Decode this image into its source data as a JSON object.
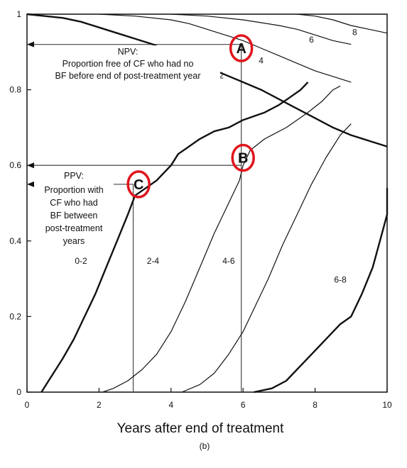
{
  "chart_data": {
    "type": "line",
    "title": "",
    "xlabel": "Years after end of treatment",
    "ylabel": "",
    "subcaption": "(b)",
    "xlim": [
      0,
      10
    ],
    "ylim": [
      0,
      1
    ],
    "x_ticks": [
      "0",
      "2",
      "4",
      "6",
      "8",
      "10"
    ],
    "y_ticks": [
      "0",
      "0.2",
      "0.4",
      "0.6",
      "0.8",
      "1"
    ],
    "grid": false,
    "series": [
      {
        "name": "2",
        "role": "npv",
        "points": [
          [
            0,
            1
          ],
          [
            0.5,
            0.995
          ],
          [
            1,
            0.99
          ],
          [
            1.5,
            0.98
          ],
          [
            2,
            0.965
          ],
          [
            2.5,
            0.95
          ],
          [
            3,
            0.935
          ],
          [
            3.5,
            0.92
          ],
          [
            4,
            0.9
          ],
          [
            4.5,
            0.88
          ],
          [
            5,
            0.86
          ],
          [
            5.5,
            0.84
          ],
          [
            6,
            0.82
          ],
          [
            6.5,
            0.8
          ],
          [
            7,
            0.775
          ],
          [
            7.5,
            0.75
          ],
          [
            8,
            0.725
          ],
          [
            8.5,
            0.7
          ],
          [
            9,
            0.68
          ],
          [
            9.5,
            0.665
          ],
          [
            10,
            0.65
          ]
        ]
      },
      {
        "name": "4",
        "role": "npv",
        "points": [
          [
            2,
            1
          ],
          [
            3,
            0.995
          ],
          [
            4,
            0.985
          ],
          [
            4.5,
            0.975
          ],
          [
            5,
            0.96
          ],
          [
            5.5,
            0.945
          ],
          [
            6,
            0.93
          ],
          [
            6.5,
            0.91
          ],
          [
            7,
            0.89
          ],
          [
            7.5,
            0.87
          ],
          [
            8,
            0.85
          ],
          [
            8.5,
            0.835
          ],
          [
            9,
            0.82
          ]
        ]
      },
      {
        "name": "6",
        "role": "npv",
        "points": [
          [
            4,
            1
          ],
          [
            5,
            0.995
          ],
          [
            6,
            0.985
          ],
          [
            7,
            0.97
          ],
          [
            7.5,
            0.96
          ],
          [
            8,
            0.945
          ],
          [
            8.5,
            0.93
          ],
          [
            9,
            0.92
          ]
        ]
      },
      {
        "name": "8",
        "role": "npv",
        "points": [
          [
            7.5,
            1
          ],
          [
            8,
            0.995
          ],
          [
            8.5,
            0.985
          ],
          [
            9,
            0.97
          ],
          [
            9.5,
            0.96
          ],
          [
            10,
            0.95
          ]
        ]
      },
      {
        "name": "0-2",
        "role": "ppv",
        "points": [
          [
            0.4,
            0
          ],
          [
            0.6,
            0.03
          ],
          [
            0.8,
            0.06
          ],
          [
            1,
            0.09
          ],
          [
            1.3,
            0.14
          ],
          [
            1.6,
            0.2
          ],
          [
            1.9,
            0.26
          ],
          [
            2.2,
            0.33
          ],
          [
            2.5,
            0.4
          ],
          [
            2.8,
            0.47
          ],
          [
            3,
            0.52
          ],
          [
            3.3,
            0.54
          ],
          [
            3.6,
            0.56
          ],
          [
            4,
            0.6
          ],
          [
            4.2,
            0.63
          ],
          [
            4.8,
            0.67
          ],
          [
            5.2,
            0.69
          ],
          [
            5.6,
            0.7
          ],
          [
            6,
            0.72
          ],
          [
            6.6,
            0.74
          ],
          [
            7,
            0.76
          ],
          [
            7.3,
            0.78
          ],
          [
            7.6,
            0.8
          ],
          [
            7.8,
            0.82
          ]
        ]
      },
      {
        "name": "2-4",
        "role": "ppv",
        "points": [
          [
            2.1,
            0
          ],
          [
            2.4,
            0.01
          ],
          [
            2.8,
            0.03
          ],
          [
            3.2,
            0.06
          ],
          [
            3.6,
            0.1
          ],
          [
            4,
            0.16
          ],
          [
            4.4,
            0.24
          ],
          [
            4.8,
            0.33
          ],
          [
            5.2,
            0.42
          ],
          [
            5.6,
            0.5
          ],
          [
            5.9,
            0.56
          ],
          [
            6,
            0.6
          ],
          [
            6.2,
            0.64
          ],
          [
            6.6,
            0.67
          ],
          [
            7.2,
            0.7
          ],
          [
            7.8,
            0.74
          ],
          [
            8.2,
            0.77
          ],
          [
            8.5,
            0.8
          ],
          [
            8.7,
            0.81
          ]
        ]
      },
      {
        "name": "4-6",
        "role": "ppv",
        "points": [
          [
            4.3,
            0
          ],
          [
            4.8,
            0.02
          ],
          [
            5.2,
            0.05
          ],
          [
            5.6,
            0.1
          ],
          [
            6,
            0.16
          ],
          [
            6.3,
            0.22
          ],
          [
            6.7,
            0.3
          ],
          [
            7.1,
            0.39
          ],
          [
            7.5,
            0.47
          ],
          [
            7.9,
            0.55
          ],
          [
            8.3,
            0.62
          ],
          [
            8.7,
            0.68
          ],
          [
            9,
            0.71
          ]
        ]
      },
      {
        "name": "6-8",
        "role": "ppv",
        "points": [
          [
            6.3,
            0
          ],
          [
            6.8,
            0.01
          ],
          [
            7.2,
            0.03
          ],
          [
            7.6,
            0.07
          ],
          [
            8,
            0.11
          ],
          [
            8.4,
            0.15
          ],
          [
            8.7,
            0.18
          ],
          [
            9,
            0.2
          ],
          [
            9.3,
            0.26
          ],
          [
            9.6,
            0.33
          ],
          [
            9.8,
            0.4
          ],
          [
            10,
            0.47
          ],
          [
            10,
            0.54
          ]
        ]
      }
    ],
    "series_label_pos": {
      "2": [
        5.4,
        0.83
      ],
      "4": [
        6.5,
        0.87
      ],
      "6": [
        7.9,
        0.925
      ],
      "8": [
        9.1,
        0.945
      ],
      "0-2": [
        1.5,
        0.34
      ],
      "2-4": [
        3.5,
        0.34
      ],
      "4-6": [
        5.6,
        0.34
      ],
      "6-8": [
        8.7,
        0.29
      ]
    },
    "guides": [
      {
        "from": [
          5.95,
          0.92
        ],
        "to": [
          0,
          0.92
        ],
        "arrow": true
      },
      {
        "from": [
          5.95,
          0.6
        ],
        "to": [
          0,
          0.6
        ],
        "arrow": true
      },
      {
        "from": [
          2.95,
          0.55
        ],
        "to": [
          0,
          0.55
        ],
        "arrow": true
      },
      {
        "from": [
          5.95,
          0.92
        ],
        "to": [
          5.95,
          0
        ]
      },
      {
        "from": [
          2.95,
          0.55
        ],
        "to": [
          2.95,
          0
        ]
      }
    ],
    "annotations": {
      "npv": [
        "NPV:",
        "Proportion free of CF who had no",
        "BF before end of post-treatment year"
      ],
      "ppv": [
        "PPV:",
        "Proportion with",
        "CF who had",
        "BF between",
        "post-treatment",
        "years"
      ]
    },
    "markers": [
      {
        "label": "A",
        "x": 5.95,
        "y": 0.91
      },
      {
        "label": "B",
        "x": 6.0,
        "y": 0.62
      },
      {
        "label": "C",
        "x": 3.1,
        "y": 0.55
      }
    ],
    "colors": {
      "line": "#111111",
      "guide": "#555555",
      "marker": "#e0141c"
    }
  }
}
